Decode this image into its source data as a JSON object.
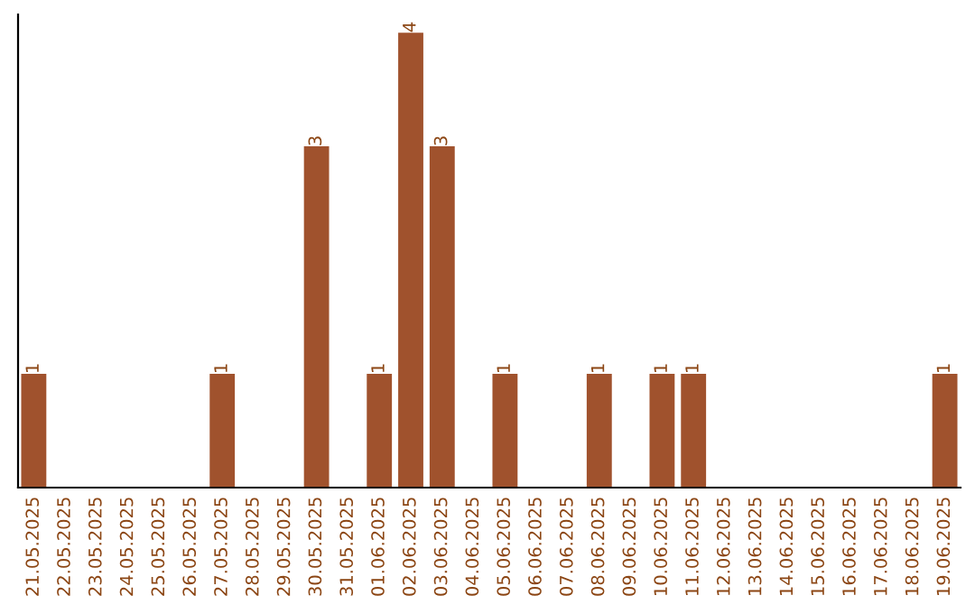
{
  "chart_data": {
    "type": "bar",
    "categories": [
      "21.05.2025",
      "22.05.2025",
      "23.05.2025",
      "24.05.2025",
      "25.05.2025",
      "26.05.2025",
      "27.05.2025",
      "28.05.2025",
      "29.05.2025",
      "30.05.2025",
      "31.05.2025",
      "01.06.2025",
      "02.06.2025",
      "03.06.2025",
      "04.06.2025",
      "05.06.2025",
      "06.06.2025",
      "07.06.2025",
      "08.06.2025",
      "09.06.2025",
      "10.06.2025",
      "11.06.2025",
      "12.06.2025",
      "13.06.2025",
      "14.06.2025",
      "15.06.2025",
      "16.06.2025",
      "17.06.2025",
      "18.06.2025",
      "19.06.2025"
    ],
    "values": [
      1,
      0,
      0,
      0,
      0,
      0,
      1,
      0,
      0,
      3,
      0,
      1,
      4,
      3,
      0,
      1,
      0,
      0,
      1,
      0,
      1,
      1,
      0,
      0,
      0,
      0,
      0,
      0,
      0,
      1
    ],
    "color": "#a0522d",
    "value_labels": [
      "1",
      null,
      null,
      null,
      null,
      null,
      "1",
      null,
      null,
      "3",
      null,
      "1",
      "4",
      "3",
      null,
      "1",
      null,
      null,
      "1",
      null,
      "1",
      "1",
      null,
      null,
      null,
      null,
      null,
      null,
      null,
      "1"
    ],
    "grid": false,
    "legend": false,
    "tick_labels": "x"
  }
}
